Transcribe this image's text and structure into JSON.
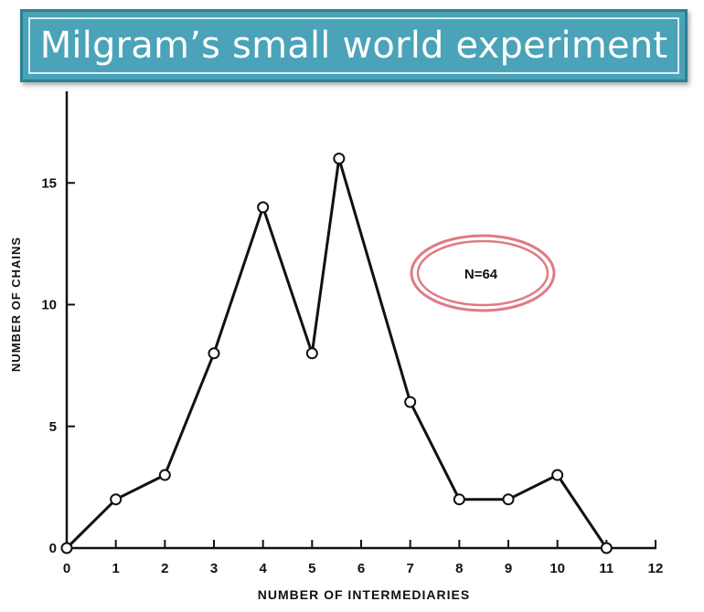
{
  "header": {
    "title": "Milgram’s small world experiment"
  },
  "chart_data": {
    "type": "line",
    "title": "",
    "xlabel": "NUMBER OF INTERMEDIARIES",
    "ylabel": "NUMBER OF CHAINS",
    "xlim": [
      0,
      12
    ],
    "ylim": [
      0,
      17
    ],
    "x_ticks": [
      "0",
      "1",
      "2",
      "3",
      "4",
      "5",
      "6",
      "7",
      "8",
      "9",
      "10",
      "11",
      "12"
    ],
    "y_ticks": [
      "0",
      "5",
      "10",
      "15"
    ],
    "grid": false,
    "annotation": "N=64",
    "annotation_color": "#e07a85",
    "line_color": "#111111",
    "series": [
      {
        "x": [
          0,
          1,
          2,
          3,
          4,
          5,
          5.55,
          7,
          8,
          9,
          10,
          11
        ],
        "y": [
          0,
          2,
          3,
          8,
          14,
          8,
          16,
          6,
          2,
          2,
          3,
          0
        ]
      }
    ]
  }
}
